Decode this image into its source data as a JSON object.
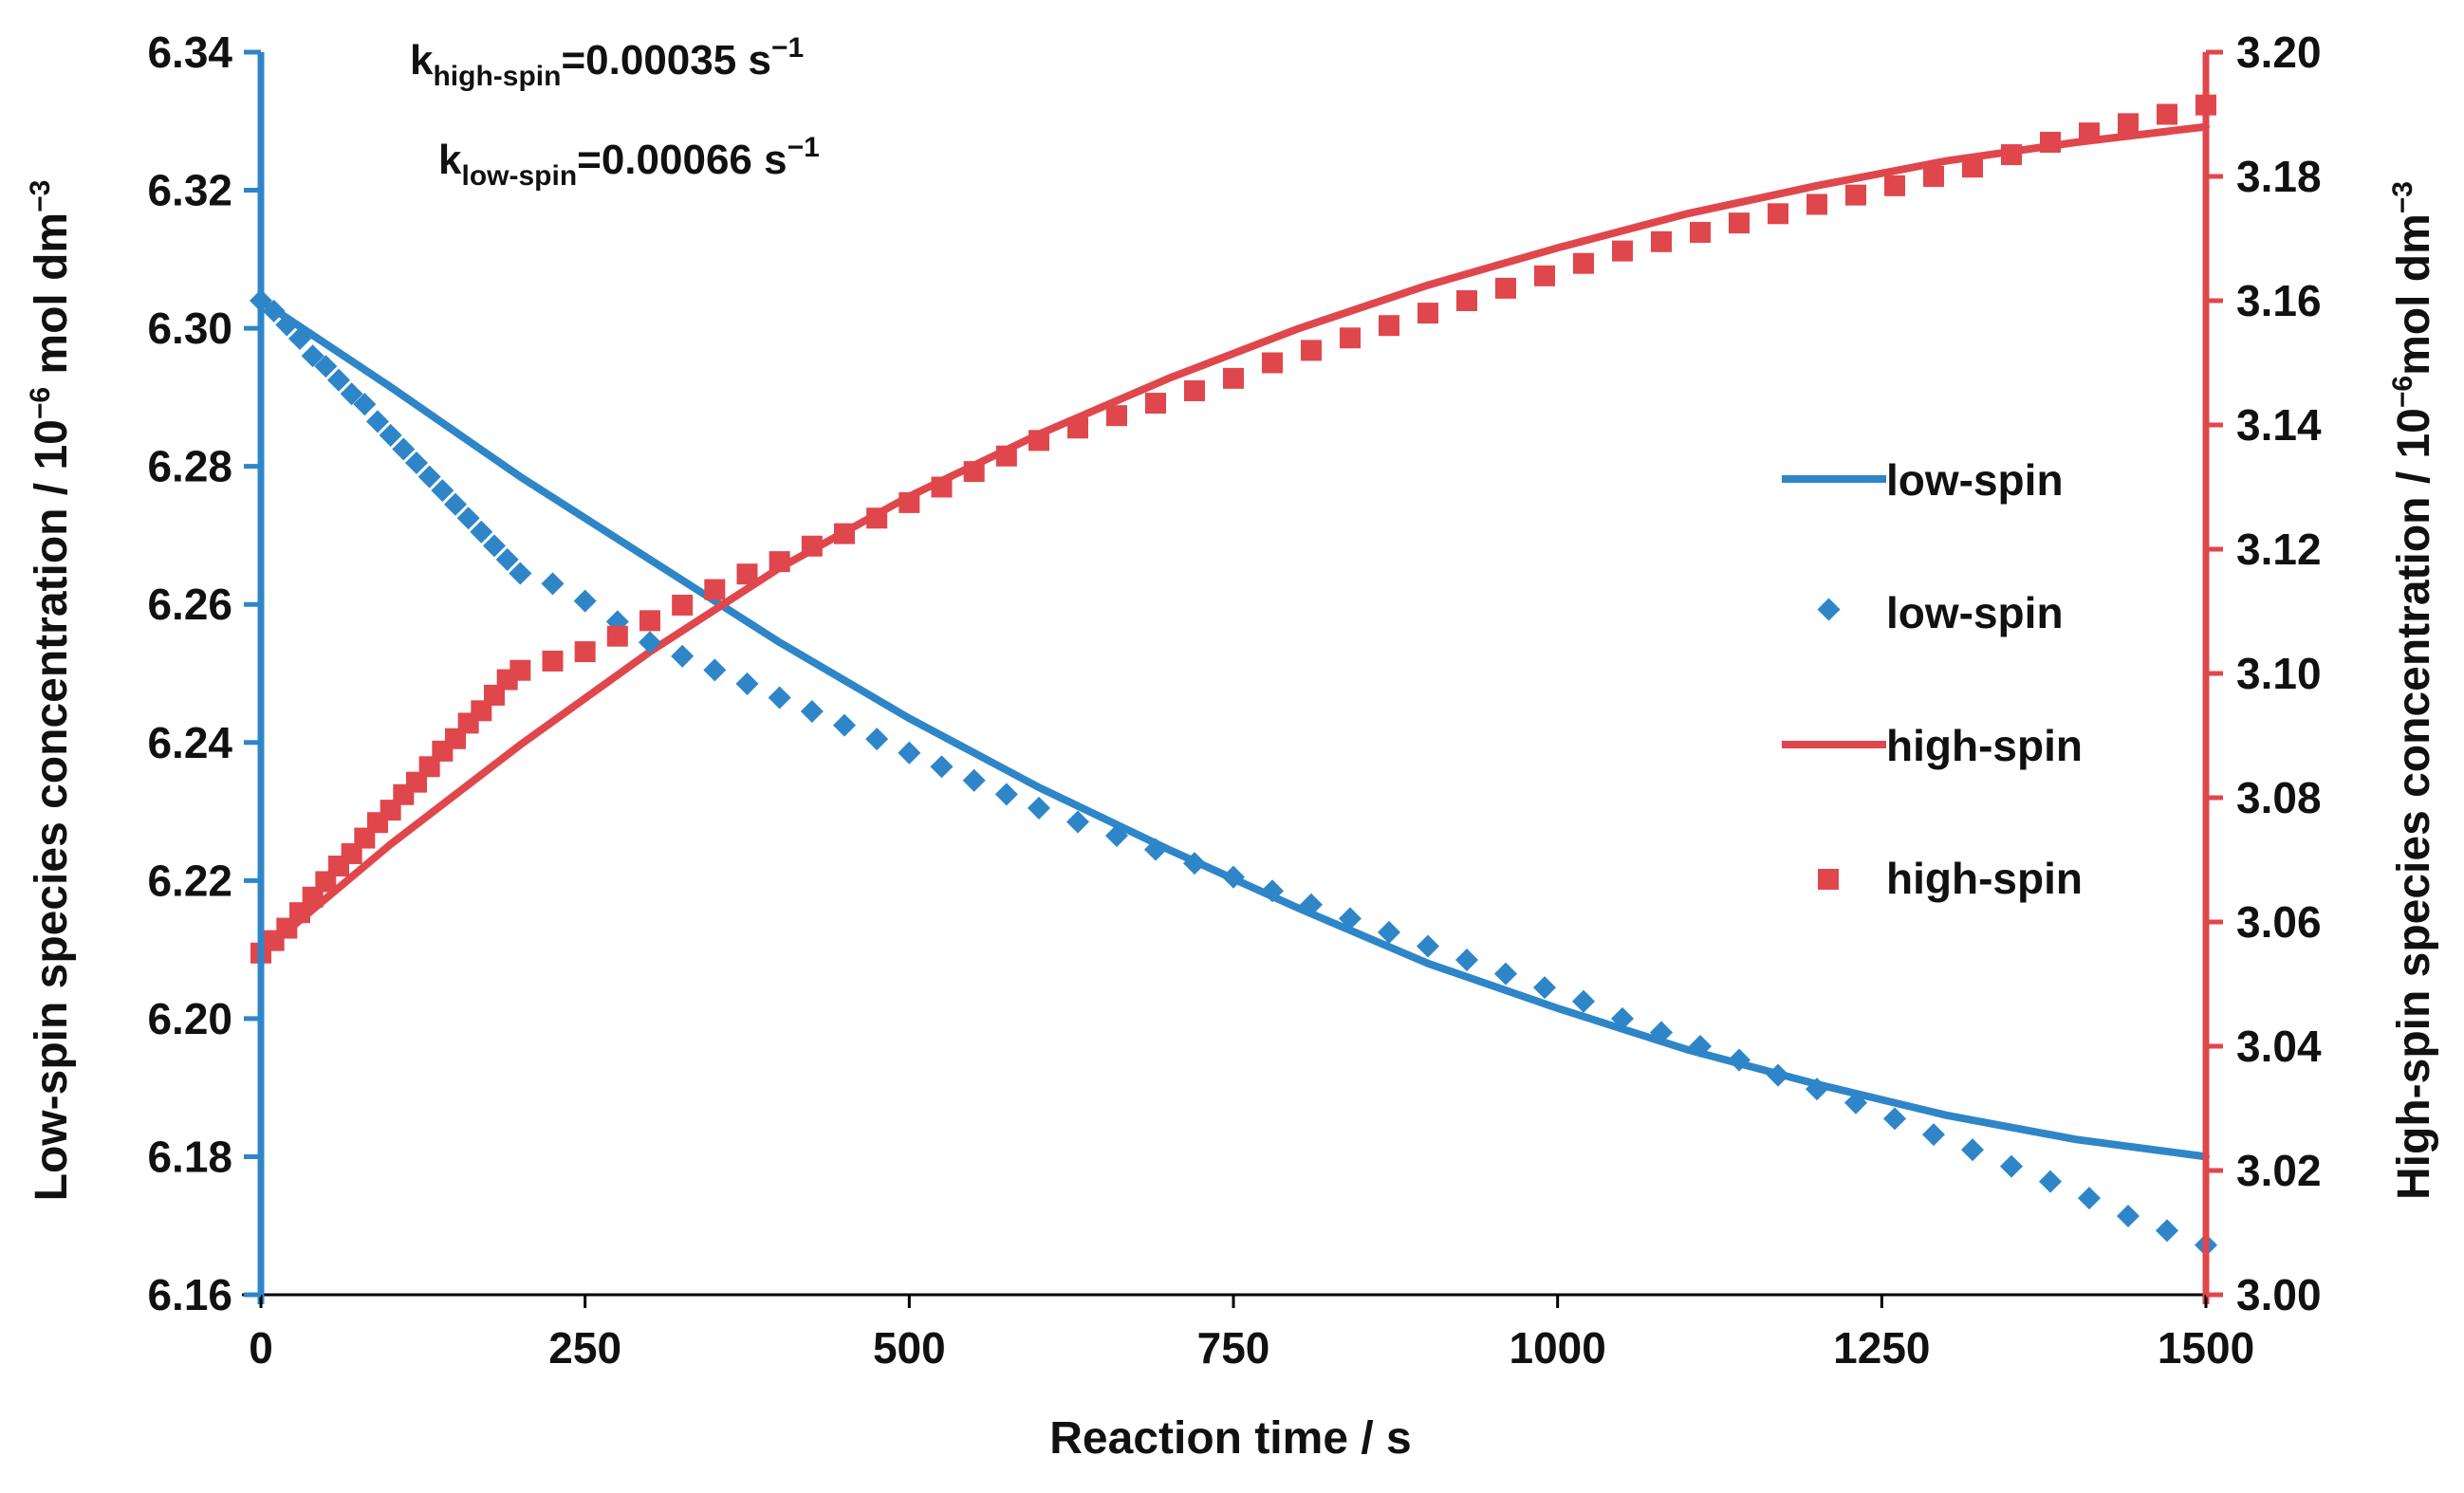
{
  "chart_data": {
    "type": "scatter",
    "title": "",
    "xlabel": "Reaction time / s",
    "ylabel_left": "Low-spin species concentration / 10⁻⁶ mol dm⁻³",
    "ylabel_left_parts": {
      "pre": "Low-spin species concentration / 10",
      "sup1": "−6",
      "mid": " mol dm",
      "sup2": "−3"
    },
    "ylabel_right": "High-spin species concentration / 10⁻⁶mol dm⁻³",
    "ylabel_right_parts": {
      "pre": "High-spin species concentration / 10",
      "sup1": "−6",
      "mid": "mol dm",
      "sup2": "−3"
    },
    "xlim": [
      0,
      1500
    ],
    "ylim_left": [
      6.16,
      6.34
    ],
    "ylim_right": [
      3.0,
      3.2
    ],
    "x_ticks": [
      "0",
      "250",
      "500",
      "750",
      "1000",
      "1250",
      "1500"
    ],
    "y_left_ticks": [
      "6.16",
      "6.18",
      "6.20",
      "6.22",
      "6.24",
      "6.26",
      "6.28",
      "6.30",
      "6.32",
      "6.34"
    ],
    "y_right_ticks": [
      "3.00",
      "3.02",
      "3.04",
      "3.06",
      "3.08",
      "3.10",
      "3.12",
      "3.14",
      "3.16",
      "3.18",
      "3.20"
    ],
    "annotations": [
      {
        "k": "k",
        "sub": "high-spin",
        "val": "=0.00035 s",
        "sup": "−1"
      },
      {
        "k": "k",
        "sub": "low-spin",
        "val": "=0.00066 s",
        "sup": "−1"
      }
    ],
    "colors": {
      "low_spin": "#2E86C8",
      "high_spin": "#E0474C"
    },
    "legend_position": "right",
    "series": [
      {
        "name": "low-spin",
        "kind": "line",
        "axis": "left",
        "color": "#2E86C8",
        "x": [
          0,
          100,
          200,
          300,
          400,
          500,
          600,
          700,
          800,
          900,
          1000,
          1100,
          1200,
          1300,
          1400,
          1500
        ],
        "y": [
          6.304,
          6.2915,
          6.2785,
          6.2665,
          6.2545,
          6.2435,
          6.2335,
          6.2245,
          6.216,
          6.208,
          6.2015,
          6.1955,
          6.1905,
          6.186,
          6.1825,
          6.18
        ]
      },
      {
        "name": "low-spin",
        "kind": "markers",
        "marker": "diamond",
        "axis": "left",
        "color": "#2E86C8",
        "x": [
          0,
          10,
          20,
          30,
          40,
          50,
          60,
          70,
          80,
          90,
          100,
          110,
          120,
          130,
          140,
          150,
          160,
          170,
          180,
          190,
          200,
          225,
          250,
          275,
          300,
          325,
          350,
          375,
          400,
          425,
          450,
          475,
          500,
          525,
          550,
          575,
          600,
          630,
          660,
          690,
          720,
          750,
          780,
          810,
          840,
          870,
          900,
          930,
          960,
          990,
          1020,
          1050,
          1080,
          1110,
          1140,
          1170,
          1200,
          1230,
          1260,
          1290,
          1320,
          1350,
          1380,
          1410,
          1440,
          1470,
          1500
        ],
        "y": [
          6.304,
          6.3025,
          6.3005,
          6.2985,
          6.296,
          6.2945,
          6.2925,
          6.2905,
          6.289,
          6.2865,
          6.2845,
          6.2825,
          6.2805,
          6.2785,
          6.2765,
          6.2745,
          6.2725,
          6.2705,
          6.2685,
          6.2665,
          6.2645,
          6.263,
          6.2605,
          6.2575,
          6.2545,
          6.2525,
          6.2505,
          6.2485,
          6.2465,
          6.2445,
          6.2425,
          6.2405,
          6.2385,
          6.2365,
          6.2345,
          6.2325,
          6.2305,
          6.2285,
          6.2265,
          6.2245,
          6.2225,
          6.2205,
          6.2185,
          6.2165,
          6.2145,
          6.2125,
          6.2105,
          6.2085,
          6.2065,
          6.2045,
          6.2025,
          6.2,
          6.198,
          6.196,
          6.194,
          6.1918,
          6.1898,
          6.1878,
          6.1855,
          6.1832,
          6.181,
          6.1786,
          6.1764,
          6.174,
          6.1714,
          6.1693,
          6.1672
        ]
      },
      {
        "name": "high-spin",
        "kind": "line",
        "axis": "right",
        "color": "#E0474C",
        "x": [
          0,
          100,
          200,
          300,
          400,
          500,
          600,
          700,
          800,
          900,
          1000,
          1100,
          1200,
          1300,
          1400,
          1500
        ],
        "y": [
          3.055,
          3.0725,
          3.0885,
          3.1035,
          3.117,
          3.1285,
          3.1385,
          3.1475,
          3.1555,
          3.1625,
          3.1685,
          3.174,
          3.1785,
          3.1825,
          3.1855,
          3.188
        ]
      },
      {
        "name": "high-spin",
        "kind": "markers",
        "marker": "square",
        "axis": "right",
        "color": "#E0474C",
        "x": [
          0,
          10,
          20,
          30,
          40,
          50,
          60,
          70,
          80,
          90,
          100,
          110,
          120,
          130,
          140,
          150,
          160,
          170,
          180,
          190,
          200,
          225,
          250,
          275,
          300,
          325,
          350,
          375,
          400,
          425,
          450,
          475,
          500,
          525,
          550,
          575,
          600,
          630,
          660,
          690,
          720,
          750,
          780,
          810,
          840,
          870,
          900,
          930,
          960,
          990,
          1020,
          1050,
          1080,
          1110,
          1140,
          1170,
          1200,
          1230,
          1260,
          1290,
          1320,
          1350,
          1380,
          1410,
          1440,
          1470,
          1500
        ],
        "y": [
          3.055,
          3.057,
          3.059,
          3.0615,
          3.064,
          3.0665,
          3.069,
          3.071,
          3.0735,
          3.076,
          3.078,
          3.0805,
          3.0825,
          3.085,
          3.0875,
          3.0895,
          3.092,
          3.094,
          3.0965,
          3.099,
          3.1005,
          3.102,
          3.1035,
          3.106,
          3.1085,
          3.111,
          3.1135,
          3.116,
          3.118,
          3.1205,
          3.1225,
          3.125,
          3.1275,
          3.13,
          3.1325,
          3.135,
          3.1375,
          3.1395,
          3.1415,
          3.1435,
          3.1455,
          3.1475,
          3.15,
          3.152,
          3.154,
          3.156,
          3.158,
          3.16,
          3.162,
          3.164,
          3.166,
          3.168,
          3.1695,
          3.171,
          3.1725,
          3.174,
          3.1755,
          3.177,
          3.1785,
          3.18,
          3.1815,
          3.1835,
          3.1855,
          3.187,
          3.1885,
          3.19,
          3.1915
        ]
      }
    ]
  }
}
